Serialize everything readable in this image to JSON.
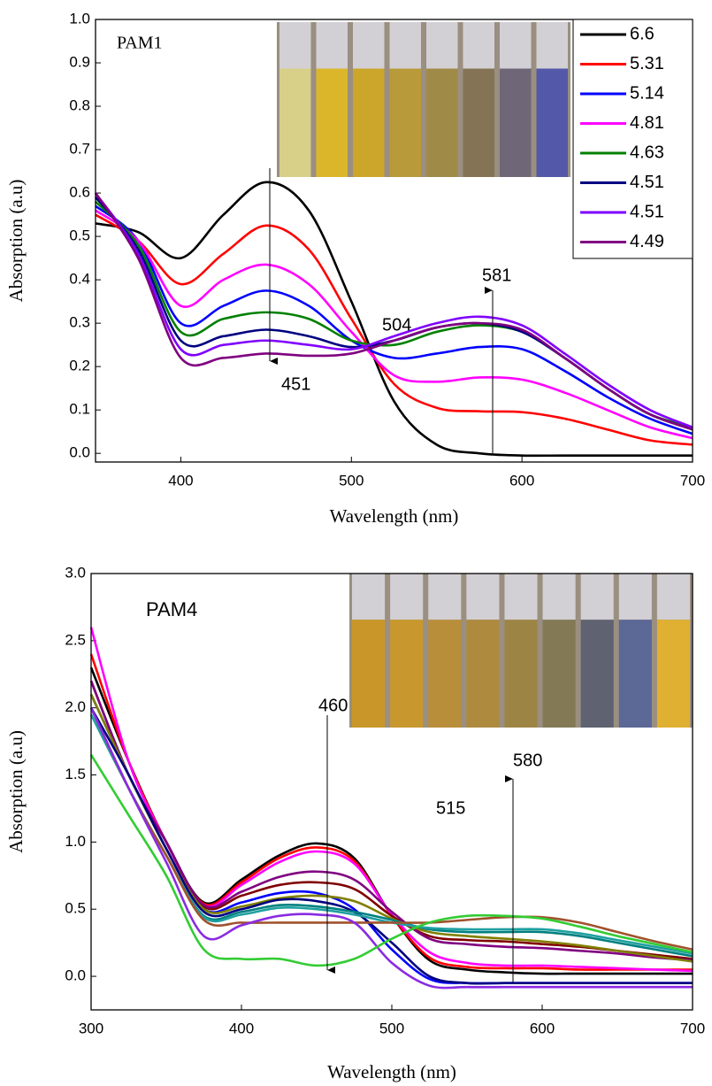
{
  "chart_data": [
    {
      "type": "line",
      "xlabel": "Wavelength (nm)",
      "ylabel": "Absorption (a.u)",
      "annotations": [
        "PAM1",
        "451",
        "504",
        "581"
      ],
      "x": [
        350,
        375,
        400,
        425,
        450,
        475,
        500,
        525,
        550,
        575,
        600,
        625,
        650,
        675,
        700
      ],
      "xlim": [
        350,
        700
      ],
      "xticks": [
        400,
        500,
        600,
        700
      ],
      "ylim": [
        -0.02,
        1.0
      ],
      "yticks": [
        {
          "value": 0,
          "label": "0.0"
        },
        0.1,
        0.2,
        0.3,
        0.4,
        0.5,
        0.6,
        0.7,
        0.8,
        0.9,
        {
          "value": 1,
          "label": "1.0"
        }
      ],
      "legend": "upper right",
      "series": [
        {
          "name": "6.6",
          "color": "#000000",
          "values": [
            0.53,
            0.51,
            0.45,
            0.55,
            0.625,
            0.56,
            0.35,
            0.12,
            0.02,
            0.0,
            -0.005,
            -0.005,
            -0.005,
            -0.005,
            -0.005
          ]
        },
        {
          "name": "5.31",
          "color": "#ff0000",
          "values": [
            0.55,
            0.49,
            0.39,
            0.46,
            0.525,
            0.47,
            0.31,
            0.16,
            0.105,
            0.097,
            0.095,
            0.08,
            0.055,
            0.03,
            0.02
          ]
        },
        {
          "name": "5.14",
          "color": "#0000ff",
          "values": [
            0.57,
            0.49,
            0.3,
            0.34,
            0.375,
            0.34,
            0.26,
            0.22,
            0.23,
            0.245,
            0.24,
            0.19,
            0.13,
            0.08,
            0.045
          ]
        },
        {
          "name": "4.81",
          "color": "#ff00ff",
          "values": [
            0.56,
            0.49,
            0.34,
            0.4,
            0.435,
            0.39,
            0.28,
            0.18,
            0.165,
            0.175,
            0.17,
            0.14,
            0.1,
            0.06,
            0.035
          ]
        },
        {
          "name": "4.63",
          "color": "#008000",
          "values": [
            0.58,
            0.48,
            0.28,
            0.31,
            0.325,
            0.31,
            0.26,
            0.25,
            0.28,
            0.295,
            0.28,
            0.22,
            0.15,
            0.09,
            0.06
          ]
        },
        {
          "name": "4.51",
          "color": "#000080",
          "values": [
            0.59,
            0.47,
            0.26,
            0.27,
            0.285,
            0.27,
            0.245,
            0.26,
            0.29,
            0.3,
            0.28,
            0.22,
            0.15,
            0.09,
            0.055
          ]
        },
        {
          "name": "4.51",
          "color": "#8000ff",
          "values": [
            0.6,
            0.46,
            0.24,
            0.25,
            0.26,
            0.25,
            0.24,
            0.27,
            0.3,
            0.315,
            0.295,
            0.23,
            0.16,
            0.1,
            0.06
          ]
        },
        {
          "name": "4.49",
          "color": "#800080",
          "values": [
            0.6,
            0.45,
            0.22,
            0.22,
            0.23,
            0.225,
            0.23,
            0.26,
            0.29,
            0.3,
            0.285,
            0.22,
            0.15,
            0.09,
            0.055
          ]
        }
      ]
    },
    {
      "type": "line",
      "xlabel": "Wavelength (nm)",
      "ylabel": "Absorption (a.u)",
      "annotations": [
        "PAM4",
        "460",
        "515",
        "580"
      ],
      "x": [
        300,
        325,
        350,
        375,
        400,
        425,
        450,
        475,
        500,
        525,
        550,
        575,
        600,
        625,
        650,
        675,
        700
      ],
      "xlim": [
        300,
        700
      ],
      "xticks": [
        300,
        400,
        500,
        600,
        700
      ],
      "ylim": [
        -0.25,
        3.0
      ],
      "yticks": [
        {
          "value": 0,
          "label": "0.0"
        },
        0.5,
        {
          "value": 1,
          "label": "1.0"
        },
        1.5,
        {
          "value": 2,
          "label": "2.0"
        },
        2.5,
        {
          "value": 3,
          "label": "3.0"
        }
      ],
      "series": [
        {
          "color": "#000000",
          "values": [
            2.3,
            1.6,
            1.0,
            0.55,
            0.72,
            0.9,
            0.99,
            0.88,
            0.45,
            0.12,
            0.05,
            0.03,
            0.02,
            0.02,
            0.02,
            0.02,
            0.02
          ]
        },
        {
          "color": "#ff0000",
          "values": [
            2.4,
            1.6,
            1.0,
            0.54,
            0.7,
            0.88,
            0.96,
            0.86,
            0.45,
            0.14,
            0.07,
            0.06,
            0.06,
            0.05,
            0.05,
            0.05,
            0.05
          ]
        },
        {
          "color": "#ff00ff",
          "values": [
            2.6,
            1.6,
            1.0,
            0.53,
            0.68,
            0.85,
            0.93,
            0.84,
            0.46,
            0.18,
            0.1,
            0.08,
            0.08,
            0.07,
            0.06,
            0.05,
            0.04
          ]
        },
        {
          "color": "#800000",
          "values": [
            2.2,
            1.5,
            1.0,
            0.52,
            0.6,
            0.68,
            0.7,
            0.65,
            0.45,
            0.3,
            0.27,
            0.26,
            0.24,
            0.22,
            0.19,
            0.16,
            0.13
          ]
        },
        {
          "color": "#800080",
          "values": [
            2.2,
            1.5,
            1.0,
            0.53,
            0.63,
            0.74,
            0.78,
            0.72,
            0.48,
            0.28,
            0.24,
            0.22,
            0.21,
            0.19,
            0.17,
            0.14,
            0.12
          ]
        },
        {
          "color": "#0000ff",
          "values": [
            2.1,
            1.5,
            0.95,
            0.5,
            0.55,
            0.62,
            0.62,
            0.5,
            0.2,
            -0.02,
            -0.05,
            -0.05,
            -0.05,
            -0.05,
            -0.05,
            -0.05,
            -0.05
          ]
        },
        {
          "color": "#808000",
          "values": [
            2.1,
            1.5,
            0.95,
            0.5,
            0.52,
            0.58,
            0.6,
            0.56,
            0.43,
            0.33,
            0.3,
            0.28,
            0.26,
            0.23,
            0.19,
            0.15,
            0.11
          ]
        },
        {
          "color": "#000080",
          "values": [
            2.0,
            1.5,
            0.95,
            0.48,
            0.5,
            0.57,
            0.56,
            0.48,
            0.25,
            0.0,
            -0.05,
            -0.05,
            -0.05,
            -0.05,
            -0.05,
            -0.05,
            -0.05
          ]
        },
        {
          "color": "#008080",
          "values": [
            2.0,
            1.4,
            0.9,
            0.45,
            0.48,
            0.53,
            0.52,
            0.48,
            0.42,
            0.35,
            0.33,
            0.33,
            0.33,
            0.3,
            0.25,
            0.2,
            0.15
          ]
        },
        {
          "color": "#20a0a0",
          "values": [
            1.95,
            1.4,
            0.9,
            0.44,
            0.46,
            0.51,
            0.5,
            0.46,
            0.4,
            0.36,
            0.35,
            0.35,
            0.35,
            0.32,
            0.27,
            0.22,
            0.17
          ]
        },
        {
          "color": "#a0522d",
          "values": [
            2.0,
            1.4,
            0.9,
            0.42,
            0.4,
            0.4,
            0.4,
            0.4,
            0.4,
            0.4,
            0.42,
            0.44,
            0.44,
            0.4,
            0.33,
            0.26,
            0.2
          ]
        },
        {
          "color": "#8a2be2",
          "values": [
            2.0,
            1.4,
            0.85,
            0.3,
            0.38,
            0.45,
            0.46,
            0.4,
            0.1,
            -0.07,
            -0.08,
            -0.08,
            -0.08,
            -0.08,
            -0.08,
            -0.08,
            -0.08
          ]
        },
        {
          "color": "#33cc33",
          "values": [
            1.65,
            1.2,
            0.75,
            0.2,
            0.13,
            0.13,
            0.08,
            0.13,
            0.28,
            0.4,
            0.45,
            0.45,
            0.43,
            0.37,
            0.3,
            0.24,
            0.18
          ]
        }
      ]
    }
  ]
}
